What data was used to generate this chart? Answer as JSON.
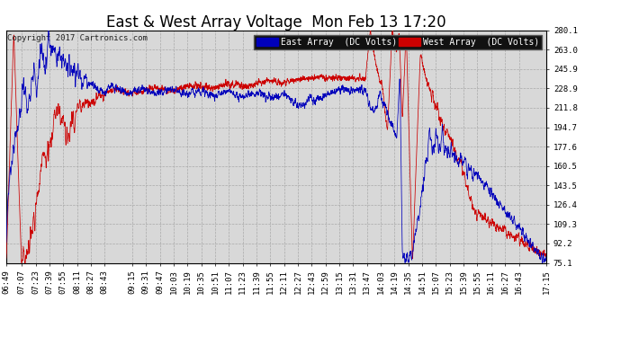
{
  "title": "East & West Array Voltage  Mon Feb 13 17:20",
  "copyright": "Copyright 2017 Cartronics.com",
  "legend_east": "East Array  (DC Volts)",
  "legend_west": "West Array  (DC Volts)",
  "east_color": "#0000bb",
  "west_color": "#cc0000",
  "bg_color": "#ffffff",
  "plot_bg_color": "#d8d8d8",
  "grid_color": "#aaaaaa",
  "yticks": [
    75.1,
    92.2,
    109.3,
    126.4,
    143.5,
    160.5,
    177.6,
    194.7,
    211.8,
    228.9,
    245.9,
    263.0,
    280.1
  ],
  "ylim": [
    75.1,
    280.1
  ],
  "title_fontsize": 12,
  "label_fontsize": 7,
  "tick_fontsize": 6.5,
  "copyright_fontsize": 6.5,
  "xtick_labels": [
    "06:49",
    "07:07",
    "07:23",
    "07:39",
    "07:55",
    "08:11",
    "08:27",
    "08:43",
    "09:15",
    "09:31",
    "09:47",
    "10:03",
    "10:19",
    "10:35",
    "10:51",
    "11:07",
    "11:23",
    "11:39",
    "11:55",
    "12:11",
    "12:27",
    "12:43",
    "12:59",
    "13:15",
    "13:31",
    "13:47",
    "14:03",
    "14:19",
    "14:35",
    "14:51",
    "15:07",
    "15:23",
    "15:39",
    "15:55",
    "16:11",
    "16:27",
    "16:43",
    "17:15"
  ]
}
